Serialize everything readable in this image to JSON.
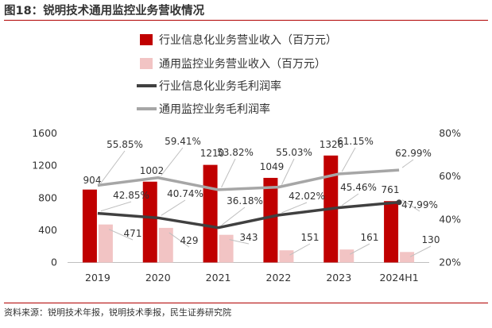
{
  "figure": {
    "title_num": "图18：",
    "title": "锐明技术通用监控业务营收情况",
    "source": "资料来源：锐明技术年报，锐明技术季报，民生证券研究院"
  },
  "chart_data": {
    "type": "bar",
    "categories": [
      "2019",
      "2020",
      "2021",
      "2022",
      "2023",
      "2024H1"
    ],
    "series": [
      {
        "name": "行业信息化业务营业收入（百万元）",
        "kind": "bar",
        "axis": "left",
        "color": "#c00000",
        "values": [
          904,
          1002,
          1210,
          1049,
          1326,
          761
        ],
        "labels": [
          "904",
          "1002",
          "1210",
          "1049",
          "1326",
          "761"
        ]
      },
      {
        "name": "通用监控业务营业收入（百万元）",
        "kind": "bar",
        "axis": "left",
        "color": "#f2c4c4",
        "values": [
          471,
          429,
          343,
          151,
          161,
          130
        ],
        "labels": [
          "471",
          "429",
          "343",
          "151",
          "161",
          "130"
        ]
      },
      {
        "name": "行业信息化业务毛利润率",
        "kind": "line",
        "axis": "right",
        "color": "#404040",
        "values": [
          42.85,
          40.74,
          36.18,
          42.02,
          45.46,
          47.99
        ],
        "labels": [
          "42.85%",
          "40.74%",
          "36.18%",
          "42.02%",
          "45.46%",
          "47.99%"
        ]
      },
      {
        "name": "通用监控业务毛利润率",
        "kind": "line",
        "axis": "right",
        "color": "#a6a6a6",
        "values": [
          55.85,
          59.41,
          53.82,
          55.03,
          61.15,
          62.99
        ],
        "labels": [
          "55.85%",
          "59.41%",
          "53.82%",
          "55.03%",
          "61.15%",
          "62.99%"
        ]
      }
    ],
    "y_left": {
      "ylim": [
        0,
        1600
      ],
      "ticks": [
        "0",
        "400",
        "800",
        "1200",
        "1600"
      ],
      "tick_values": [
        0,
        400,
        800,
        1200,
        1600
      ]
    },
    "y_right": {
      "ylim": [
        20,
        80
      ],
      "ticks": [
        "20%",
        "40%",
        "60%",
        "80%"
      ],
      "tick_values": [
        20,
        40,
        60,
        80
      ]
    },
    "legend_position": "top-center",
    "grid": false
  }
}
